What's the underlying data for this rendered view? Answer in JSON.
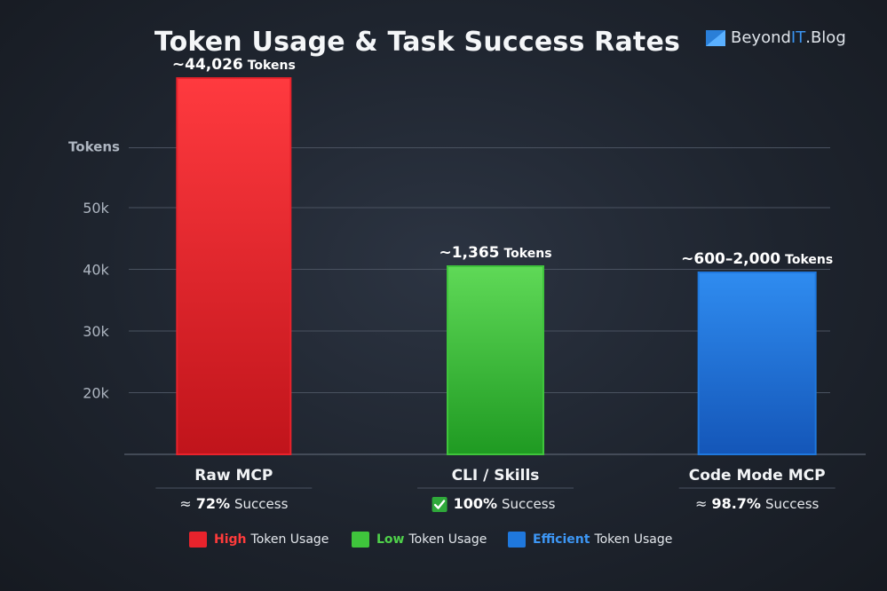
{
  "title": "Token Usage & Task Success Rates",
  "brand": {
    "name": "Beyond",
    "accent": "IT",
    "suffix": ".Blog",
    "accent_color": "#3a93f0"
  },
  "chart_data": {
    "type": "bar",
    "categories": [
      "Raw MCP",
      "CLI / Skills",
      "Code Mode MCP"
    ],
    "ylabel": "Tokens",
    "y_ticks": [
      "20k",
      "30k",
      "40k",
      "50k"
    ],
    "grid": true,
    "bars": [
      {
        "category": "Raw MCP",
        "color": "#e8232c",
        "top_tick": 6.1,
        "label_prefix": "~",
        "label_value": "44,026",
        "label_unit": "Tokens",
        "success_prefix": "≈",
        "success_value": "72%",
        "success_text": "Success",
        "success_icon": null
      },
      {
        "category": "CLI / Skills",
        "color": "#3fc43c",
        "top_tick": 3.05,
        "label_prefix": "~",
        "label_value": "1,365",
        "label_unit": "Tokens",
        "success_prefix": "",
        "success_value": "100%",
        "success_text": "Success",
        "success_icon": "check-icon"
      },
      {
        "category": "Code Mode MCP",
        "color": "#1f78dd",
        "top_tick": 2.95,
        "label_prefix": "~",
        "label_value": "600–2,000",
        "label_unit": "Tokens",
        "success_prefix": "≈",
        "success_value": "98.7%",
        "success_text": "Success",
        "success_icon": null
      }
    ]
  },
  "legend": [
    {
      "key": "High",
      "rest": "Token Usage",
      "color": "#e8232c",
      "key_color": "#ff3b3b"
    },
    {
      "key": "Low",
      "rest": "Token Usage",
      "color": "#3fc43c",
      "key_color": "#4fd14a"
    },
    {
      "key": "Efficient",
      "rest": "Token Usage",
      "color": "#1f78dd",
      "key_color": "#3d97f5"
    }
  ]
}
